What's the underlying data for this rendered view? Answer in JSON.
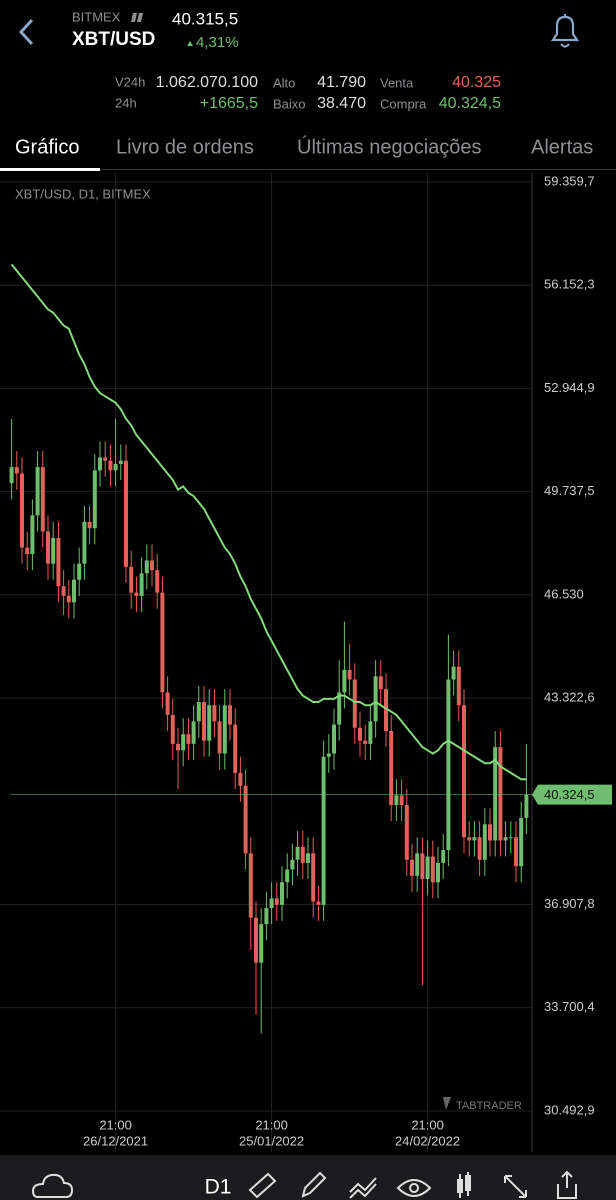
{
  "header": {
    "exchange": "BITMEX",
    "pair": "XBT/USD",
    "price": "40.315,5",
    "change": "4,31%"
  },
  "stats": {
    "v24h_label": "V24h",
    "v24h": "1.062.070.100",
    "change24h_label": "24h",
    "change24h": "+1665,5",
    "high_label": "Alto",
    "high": "41.790",
    "low_label": "Baixo",
    "low": "38.470",
    "sell_label": "Venta",
    "sell": "40.325",
    "buy_label": "Compra",
    "buy": "40.324,5"
  },
  "tabs": [
    "Gráfico",
    "Livro de ordens",
    "Últimas negociações",
    "Alertas"
  ],
  "toolbar": {
    "timeframe": "D1"
  },
  "watermark": "TABTRADER",
  "chart_data": {
    "type": "candlestick",
    "title": "XBT/USD, D1, BITMEX",
    "x": [
      "06/12/2021",
      "07/12/2021",
      "08/12/2021",
      "09/12/2021",
      "10/12/2021",
      "11/12/2021",
      "12/12/2021",
      "13/12/2021",
      "14/12/2021",
      "15/12/2021",
      "16/12/2021",
      "17/12/2021",
      "18/12/2021",
      "19/12/2021",
      "20/12/2021",
      "21/12/2021",
      "22/12/2021",
      "23/12/2021",
      "24/12/2021",
      "25/12/2021",
      "26/12/2021",
      "27/12/2021",
      "28/12/2021",
      "29/12/2021",
      "30/12/2021",
      "31/12/2021",
      "01/01/2022",
      "02/01/2022",
      "03/01/2022",
      "04/01/2022",
      "05/01/2022",
      "06/01/2022",
      "07/01/2022",
      "08/01/2022",
      "09/01/2022",
      "10/01/2022",
      "11/01/2022",
      "12/01/2022",
      "13/01/2022",
      "14/01/2022",
      "15/01/2022",
      "16/01/2022",
      "17/01/2022",
      "18/01/2022",
      "19/01/2022",
      "20/01/2022",
      "21/01/2022",
      "22/01/2022",
      "23/01/2022",
      "24/01/2022",
      "25/01/2022",
      "26/01/2022",
      "27/01/2022",
      "28/01/2022",
      "29/01/2022",
      "30/01/2022",
      "31/01/2022",
      "01/02/2022",
      "02/02/2022",
      "03/02/2022",
      "04/02/2022",
      "05/02/2022",
      "06/02/2022",
      "07/02/2022",
      "08/02/2022",
      "09/02/2022",
      "10/02/2022",
      "11/02/2022",
      "12/02/2022",
      "13/02/2022",
      "14/02/2022",
      "15/02/2022",
      "16/02/2022",
      "17/02/2022",
      "18/02/2022",
      "19/02/2022",
      "20/02/2022",
      "21/02/2022",
      "22/02/2022",
      "23/02/2022",
      "24/02/2022",
      "25/02/2022",
      "26/02/2022",
      "27/02/2022",
      "28/02/2022",
      "01/03/2022",
      "02/03/2022",
      "03/03/2022",
      "04/03/2022",
      "05/03/2022",
      "06/03/2022",
      "07/03/2022",
      "08/03/2022",
      "09/03/2022",
      "10/03/2022",
      "11/03/2022",
      "12/03/2022",
      "13/03/2022",
      "14/03/2022",
      "15/03/2022"
    ],
    "open": [
      50000,
      50500,
      50300,
      48000,
      47800,
      49000,
      50500,
      48500,
      47500,
      48300,
      46800,
      46500,
      46300,
      47000,
      47500,
      48800,
      48600,
      50400,
      50800,
      50700,
      50400,
      50600,
      50700,
      47400,
      46600,
      46500,
      47200,
      47600,
      47300,
      46600,
      43500,
      42800,
      41900,
      41700,
      42200,
      41900,
      42600,
      43200,
      42000,
      43100,
      42600,
      41600,
      43100,
      42500,
      41000,
      40600,
      38500,
      36500,
      35100,
      36300,
      36800,
      37100,
      36900,
      37600,
      38000,
      38300,
      38700,
      38200,
      38500,
      37000,
      36900,
      41500,
      41600,
      42500,
      43500,
      44200,
      43900,
      42400,
      42000,
      41900,
      42600,
      44000,
      43600,
      42300,
      40000,
      40300,
      40000,
      38300,
      37800,
      38500,
      37700,
      38400,
      37600,
      38200,
      38600,
      43900,
      44300,
      43100,
      39000,
      38900,
      39000,
      38300,
      39400,
      38900,
      41800,
      38900,
      39000,
      39000,
      38100,
      39600
    ],
    "high": [
      52000,
      51000,
      50800,
      48500,
      49500,
      51000,
      51000,
      49000,
      48800,
      48800,
      47300,
      47000,
      47500,
      48000,
      49300,
      49300,
      50900,
      51300,
      51300,
      51200,
      52000,
      51200,
      51200,
      47900,
      47100,
      47700,
      48100,
      48100,
      47800,
      47100,
      44000,
      43300,
      42400,
      42700,
      42700,
      43100,
      43700,
      43700,
      43600,
      43600,
      43100,
      43600,
      43600,
      43000,
      41500,
      41100,
      39000,
      37000,
      36800,
      37300,
      37600,
      37600,
      38100,
      38500,
      38800,
      39200,
      39200,
      39000,
      39000,
      37500,
      42000,
      42200,
      43000,
      44500,
      45700,
      45000,
      44400,
      42900,
      42500,
      43100,
      44500,
      44500,
      44100,
      42800,
      40800,
      40800,
      40500,
      38800,
      39000,
      39000,
      38900,
      38900,
      38700,
      39100,
      45300,
      44800,
      44800,
      43600,
      39500,
      39500,
      39500,
      39900,
      39900,
      42300,
      42300,
      39500,
      39500,
      39500,
      40100,
      41900
    ],
    "low": [
      49500,
      49800,
      47500,
      47300,
      47300,
      48500,
      48000,
      47000,
      47000,
      46300,
      45900,
      45800,
      45800,
      46500,
      47000,
      48100,
      48100,
      49900,
      50200,
      49900,
      49900,
      50100,
      46900,
      46100,
      46000,
      46000,
      46700,
      46800,
      46100,
      43000,
      42300,
      41400,
      40500,
      41200,
      41400,
      41400,
      42100,
      41500,
      41500,
      42100,
      41100,
      41100,
      42000,
      40500,
      40100,
      38000,
      35500,
      33500,
      32900,
      35800,
      36300,
      36400,
      36400,
      37100,
      37500,
      37800,
      37700,
      37700,
      36500,
      36400,
      36400,
      41000,
      41100,
      42000,
      43000,
      43400,
      41900,
      41500,
      41400,
      41400,
      42100,
      43100,
      41800,
      39500,
      39500,
      39500,
      37800,
      37300,
      37300,
      34400,
      37200,
      37100,
      37100,
      37700,
      38100,
      43400,
      42600,
      38500,
      38400,
      38400,
      37800,
      37800,
      38400,
      38400,
      38400,
      38400,
      38500,
      37600,
      37600,
      39100
    ],
    "close": [
      50500,
      50300,
      48000,
      47800,
      49000,
      50500,
      48500,
      47500,
      48300,
      46800,
      46500,
      46300,
      47000,
      47500,
      48800,
      48600,
      50400,
      50800,
      50700,
      50400,
      50600,
      50700,
      47400,
      46600,
      46500,
      47200,
      47600,
      47300,
      46600,
      43500,
      42800,
      41900,
      41700,
      42200,
      41900,
      42600,
      43200,
      42000,
      43100,
      42600,
      41600,
      43100,
      42500,
      41000,
      40600,
      38500,
      36500,
      35100,
      36300,
      36800,
      37100,
      36900,
      37600,
      38000,
      38300,
      38700,
      38200,
      38500,
      37000,
      36900,
      41500,
      41600,
      42500,
      43500,
      44200,
      43900,
      42400,
      42000,
      41900,
      42600,
      44000,
      43600,
      42300,
      40000,
      40300,
      40000,
      38300,
      37800,
      38500,
      37700,
      38400,
      37600,
      38200,
      38600,
      43900,
      44300,
      43100,
      39000,
      38900,
      39000,
      38300,
      39400,
      38900,
      41800,
      38900,
      39000,
      39000,
      38100,
      39600,
      40324.5
    ],
    "moving_average": {
      "color": "#86d97f",
      "values": [
        56800,
        56600,
        56400,
        56200,
        56000,
        55800,
        55600,
        55400,
        55300,
        55100,
        54900,
        54800,
        54400,
        54000,
        53700,
        53300,
        53000,
        52800,
        52700,
        52600,
        52500,
        52300,
        52000,
        51800,
        51500,
        51300,
        51100,
        50900,
        50700,
        50500,
        50300,
        50100,
        49800,
        49900,
        49700,
        49600,
        49400,
        49200,
        48900,
        48600,
        48300,
        48000,
        47800,
        47500,
        47100,
        46800,
        46400,
        46100,
        45800,
        45400,
        45100,
        44800,
        44500,
        44200,
        43900,
        43600,
        43400,
        43300,
        43200,
        43200,
        43300,
        43300,
        43300,
        43400,
        43400,
        43300,
        43200,
        43200,
        43100,
        43100,
        43200,
        43100,
        43000,
        42900,
        42800,
        42600,
        42400,
        42200,
        42000,
        41800,
        41700,
        41600,
        41700,
        41900,
        42000,
        41900,
        41800,
        41700,
        41600,
        41500,
        41400,
        41300,
        41300,
        41400,
        41200,
        41100,
        41000,
        40900,
        40800,
        40800
      ]
    },
    "up_color": "#6fbd6f",
    "down_color": "#e0625c",
    "last_price": {
      "value": 40324.5,
      "label": "40.324,5"
    },
    "ylim": [
      29219,
      59670
    ],
    "yticks": [
      {
        "value": 59359.7,
        "label": "59.359,7"
      },
      {
        "value": 56152.3,
        "label": "56.152,3"
      },
      {
        "value": 52944.9,
        "label": "52.944,9"
      },
      {
        "value": 49737.5,
        "label": "49.737,5"
      },
      {
        "value": 46530,
        "label": "46.530"
      },
      {
        "value": 43322.6,
        "label": "43.322,6"
      },
      {
        "value": 36907.8,
        "label": "36.907,8"
      },
      {
        "value": 33700.4,
        "label": "33.700,4"
      },
      {
        "value": 30492.9,
        "label": "30.492,9"
      }
    ],
    "xticks": [
      {
        "value": "26/12/2021",
        "label": "26/12/2021",
        "time": "21:00"
      },
      {
        "value": "25/01/2022",
        "label": "25/01/2022",
        "time": "21:00"
      },
      {
        "value": "24/02/2022",
        "label": "24/02/2022",
        "time": "21:00"
      }
    ],
    "grid": true
  }
}
